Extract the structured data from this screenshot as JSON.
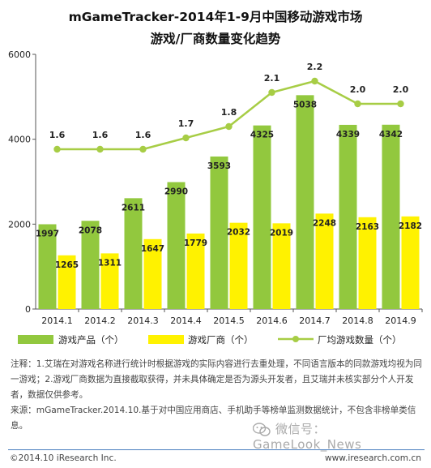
{
  "title": "mGameTracker-2014年1-9月中国移动游戏市场",
  "subtitle": "游戏/厂商数量变化趋势",
  "chart_data": {
    "type": "bar",
    "categories": [
      "2014.1",
      "2014.2",
      "2014.3",
      "2014.4",
      "2014.5",
      "2014.6",
      "2014.7",
      "2014.8",
      "2014.9"
    ],
    "series": [
      {
        "name": "游戏产品（个）",
        "type": "bar",
        "color": "#92c83e",
        "values": [
          1997,
          2078,
          2611,
          2990,
          3593,
          4325,
          5038,
          4339,
          4342
        ]
      },
      {
        "name": "游戏厂商（个）",
        "type": "bar",
        "color": "#fff200",
        "values": [
          1265,
          1311,
          1647,
          1779,
          2032,
          2019,
          2248,
          2163,
          2182
        ]
      },
      {
        "name": "厂均游戏数量（个）",
        "type": "line",
        "color": "#a7cd45",
        "values": [
          1.6,
          1.6,
          1.6,
          1.7,
          1.8,
          2.1,
          2.2,
          2.0,
          2.0
        ]
      }
    ],
    "ylim": [
      0,
      6000
    ],
    "yticks": [
      "0",
      "2000",
      "4000",
      "6000"
    ],
    "grid": false,
    "legend": "bottom"
  },
  "notes": {
    "note": "注释：1.艾瑞在对游戏名称进行统计时根据游戏的实际内容进行去重处理，不同语言版本的同款游戏均视为同一游戏；2.游戏厂商数据为直接截取获得，并未具体确定是否为源头开发者，且艾瑞并未核实部分个人开发者，数据仅供参考。",
    "source": "来源：mGameTracker.2014.10.基于对中国应用商店、手机助手等榜单监测数据统计，不包含非榜单类信息。"
  },
  "footer": {
    "copyright": "©2014.10 iResearch Inc.",
    "website": "www.iresearch.com.cn",
    "watermark": "微信号：GameLook_News"
  }
}
